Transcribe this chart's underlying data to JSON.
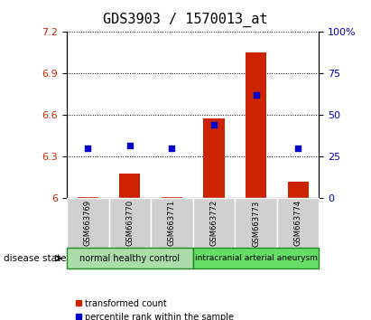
{
  "title": "GDS3903 / 1570013_at",
  "samples": [
    "GSM663769",
    "GSM663770",
    "GSM663771",
    "GSM663772",
    "GSM663773",
    "GSM663774"
  ],
  "transformed_count": [
    6.01,
    6.18,
    6.01,
    6.58,
    7.05,
    6.12
  ],
  "percentile_rank": [
    30,
    32,
    30,
    44,
    62,
    30
  ],
  "ylim_left": [
    6.0,
    7.2
  ],
  "ylim_right": [
    0,
    100
  ],
  "yticks_left": [
    6.0,
    6.3,
    6.6,
    6.9,
    7.2
  ],
  "yticks_right": [
    0,
    25,
    50,
    75,
    100
  ],
  "ytick_labels_left": [
    "6",
    "6.3",
    "6.6",
    "6.9",
    "7.2"
  ],
  "ytick_labels_right": [
    "0",
    "25",
    "50",
    "75",
    "100%"
  ],
  "bar_color": "#cc2200",
  "dot_color": "#0000cc",
  "groups": [
    {
      "label": "normal healthy control",
      "samples": [
        0,
        1,
        2
      ],
      "color": "#aaddaa"
    },
    {
      "label": "intracranial arterial aneurysm",
      "samples": [
        3,
        4,
        5
      ],
      "color": "#66dd66"
    }
  ],
  "disease_state_label": "disease state",
  "legend_bar_label": "transformed count",
  "legend_dot_label": "percentile rank within the sample",
  "background_color": "#ffffff",
  "title_fontsize": 11
}
